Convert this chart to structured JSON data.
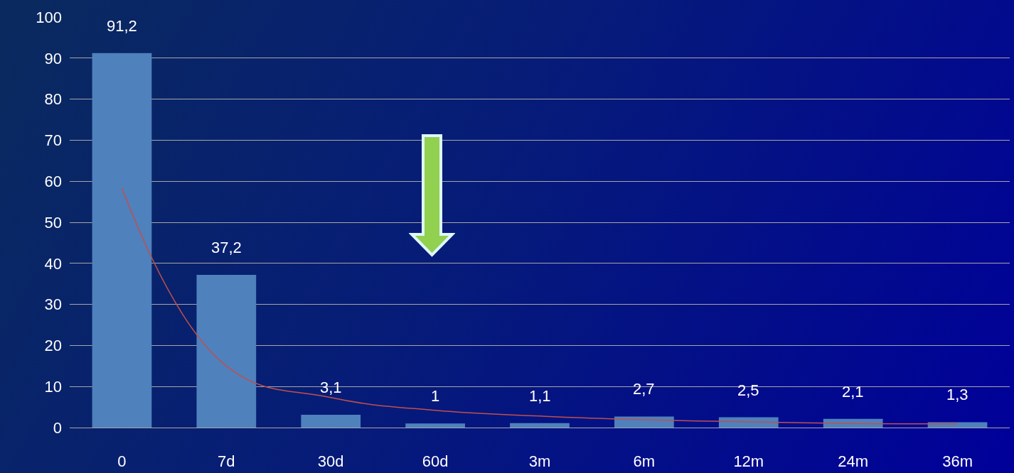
{
  "chart_data": {
    "type": "bar",
    "categories": [
      "0",
      "7d",
      "30d",
      "60d",
      "3m",
      "6m",
      "12m",
      "24m",
      "36m"
    ],
    "series": [
      {
        "color": "#4f81bd",
        "values": [
          91.2,
          37.2,
          3.1,
          1,
          1.1,
          2.7,
          2.5,
          2.1,
          1.3
        ],
        "value_labels": [
          "91,2",
          "37,2",
          "3,1",
          "1",
          "1,1",
          "2,7",
          "2,5",
          "2,1",
          "1,3"
        ]
      },
      {
        "type": "line",
        "color": "#c0504d",
        "values": [
          58.3,
          15,
          7.3,
          4.2,
          2.8,
          1.9,
          1.4,
          1.0,
          0.9
        ]
      }
    ],
    "ylim": [
      0,
      100
    ],
    "yticks": [
      0,
      10,
      20,
      30,
      40,
      50,
      60,
      70,
      80,
      90,
      100
    ],
    "grid": "y",
    "legend": false
  }
}
